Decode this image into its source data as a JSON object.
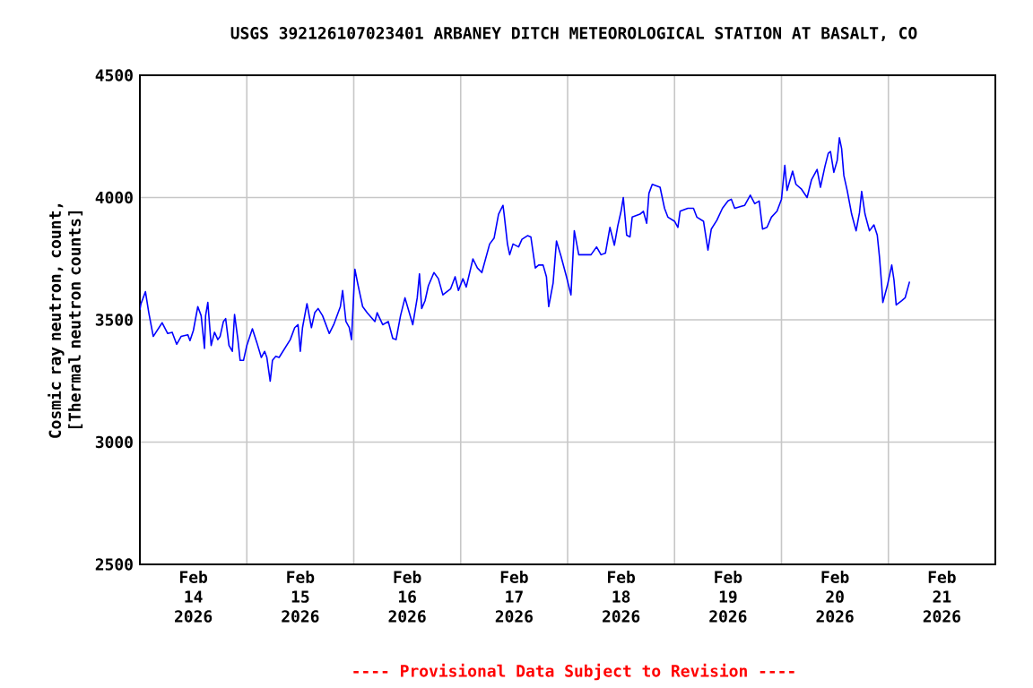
{
  "chart_data": {
    "type": "line",
    "title": "USGS 392126107023401 ARBANEY DITCH METEOROLOGICAL STATION AT BASALT, CO",
    "ylabel": "Cosmic ray neutron, count, [Thermal neutron counts]",
    "annotations": [
      "---- Provisional Data Subject to Revision ----"
    ],
    "xlim": [
      "2026-02-14",
      "2026-02-22"
    ],
    "xticks": [
      {
        "value": "2026-02-14T12:00",
        "label": "Feb 14 2026"
      },
      {
        "value": "2026-02-15T12:00",
        "label": "Feb 15 2026"
      },
      {
        "value": "2026-02-16T12:00",
        "label": "Feb 16 2026"
      },
      {
        "value": "2026-02-17T12:00",
        "label": "Feb 17 2026"
      },
      {
        "value": "2026-02-18T12:00",
        "label": "Feb 18 2026"
      },
      {
        "value": "2026-02-19T12:00",
        "label": "Feb 19 2026"
      },
      {
        "value": "2026-02-20T12:00",
        "label": "Feb 20 2026"
      },
      {
        "value": "2026-02-21T12:00",
        "label": "Feb 21 2026"
      },
      {
        "value": "2026-02-15",
        "label": null
      },
      {
        "value": "2026-02-16",
        "label": null
      },
      {
        "value": "2026-02-17",
        "label": null
      },
      {
        "value": "2026-02-18",
        "label": null
      },
      {
        "value": "2026-02-19",
        "label": null
      },
      {
        "value": "2026-02-20",
        "label": null
      },
      {
        "value": "2026-02-21",
        "label": null
      }
    ],
    "ylim": [
      2500,
      4500
    ],
    "yticks": [
      2500,
      3000,
      3500,
      4000,
      4500
    ],
    "grid": true,
    "series": [
      {
        "color": "#0000ff",
        "x": [
          "2026-02-14T00:00",
          "2026-02-14T00:15",
          "2026-02-14T01:15",
          "2026-02-14T02:00",
          "2026-02-14T03:00",
          "2026-02-14T05:00",
          "2026-02-14T06:15",
          "2026-02-14T07:15",
          "2026-02-14T08:15",
          "2026-02-14T09:15",
          "2026-02-14T10:45",
          "2026-02-14T11:15",
          "2026-02-14T12:00",
          "2026-02-14T13:00",
          "2026-02-14T13:45",
          "2026-02-14T14:30",
          "2026-02-14T14:45",
          "2026-02-14T15:15",
          "2026-02-14T16:00",
          "2026-02-14T16:45",
          "2026-02-14T17:30",
          "2026-02-14T18:00",
          "2026-02-14T18:45",
          "2026-02-14T19:15",
          "2026-02-14T20:00",
          "2026-02-14T20:45",
          "2026-02-14T21:15",
          "2026-02-14T22:00",
          "2026-02-14T22:30",
          "2026-02-14T23:15",
          "2026-02-15T00:00",
          "2026-02-15T01:15",
          "2026-02-15T02:15",
          "2026-02-15T03:15",
          "2026-02-15T04:00",
          "2026-02-15T04:30",
          "2026-02-15T05:15",
          "2026-02-15T05:45",
          "2026-02-15T06:30",
          "2026-02-15T07:15",
          "2026-02-15T09:45",
          "2026-02-15T10:45",
          "2026-02-15T11:30",
          "2026-02-15T12:00",
          "2026-02-15T12:30",
          "2026-02-15T13:30",
          "2026-02-15T14:30",
          "2026-02-15T15:15",
          "2026-02-15T16:00",
          "2026-02-15T17:00",
          "2026-02-15T18:30",
          "2026-02-15T19:30",
          "2026-02-15T21:00",
          "2026-02-15T21:30",
          "2026-02-15T22:15",
          "2026-02-15T23:00",
          "2026-02-15T23:30",
          "2026-02-16T00:15",
          "2026-02-16T01:00",
          "2026-02-16T02:00",
          "2026-02-16T03:00",
          "2026-02-16T04:45",
          "2026-02-16T05:15",
          "2026-02-16T06:30",
          "2026-02-16T07:45",
          "2026-02-16T08:45",
          "2026-02-16T09:30",
          "2026-02-16T10:30",
          "2026-02-16T11:30",
          "2026-02-16T13:15",
          "2026-02-16T14:15",
          "2026-02-16T14:45",
          "2026-02-16T15:15",
          "2026-02-16T16:00",
          "2026-02-16T16:45",
          "2026-02-16T18:00",
          "2026-02-16T19:00",
          "2026-02-16T20:00",
          "2026-02-16T21:45",
          "2026-02-16T22:45",
          "2026-02-16T23:30",
          "2026-02-17T00:30",
          "2026-02-17T01:15",
          "2026-02-17T02:45",
          "2026-02-17T03:45",
          "2026-02-17T04:45",
          "2026-02-17T06:30",
          "2026-02-17T07:30",
          "2026-02-17T08:30",
          "2026-02-17T09:30",
          "2026-02-17T09:45",
          "2026-02-17T10:30",
          "2026-02-17T11:00",
          "2026-02-17T11:45",
          "2026-02-17T13:00",
          "2026-02-17T13:45",
          "2026-02-17T15:00",
          "2026-02-17T15:45",
          "2026-02-17T16:45",
          "2026-02-17T17:30",
          "2026-02-17T18:30",
          "2026-02-17T19:15",
          "2026-02-17T19:45",
          "2026-02-17T20:45",
          "2026-02-17T21:30",
          "2026-02-17T22:30",
          "2026-02-17T23:45",
          "2026-02-18T00:45",
          "2026-02-18T01:30",
          "2026-02-18T02:30",
          "2026-02-18T05:15",
          "2026-02-18T06:30",
          "2026-02-18T07:30",
          "2026-02-18T08:30",
          "2026-02-18T09:30",
          "2026-02-18T10:30",
          "2026-02-18T11:15",
          "2026-02-18T12:00",
          "2026-02-18T12:30",
          "2026-02-18T13:15",
          "2026-02-18T14:00",
          "2026-02-18T14:30",
          "2026-02-18T16:15",
          "2026-02-18T17:00",
          "2026-02-18T17:45",
          "2026-02-18T18:15",
          "2026-02-18T19:00",
          "2026-02-18T20:45",
          "2026-02-18T21:45",
          "2026-02-18T22:30",
          "2026-02-19T00:00",
          "2026-02-19T00:45",
          "2026-02-19T01:15",
          "2026-02-19T03:00",
          "2026-02-19T04:15",
          "2026-02-19T05:00",
          "2026-02-19T06:30",
          "2026-02-19T07:30",
          "2026-02-19T08:15",
          "2026-02-19T09:30",
          "2026-02-19T10:45",
          "2026-02-19T12:00",
          "2026-02-19T12:45",
          "2026-02-19T13:30",
          "2026-02-19T15:00",
          "2026-02-19T15:45",
          "2026-02-19T17:00",
          "2026-02-19T18:00",
          "2026-02-19T19:00",
          "2026-02-19T19:45",
          "2026-02-19T20:45",
          "2026-02-19T21:45",
          "2026-02-19T23:00",
          "2026-02-20T00:00",
          "2026-02-20T00:45",
          "2026-02-20T01:15",
          "2026-02-20T02:30",
          "2026-02-20T03:15",
          "2026-02-20T04:30",
          "2026-02-20T05:45",
          "2026-02-20T06:45",
          "2026-02-20T08:00",
          "2026-02-20T08:45",
          "2026-02-20T09:45",
          "2026-02-20T10:30",
          "2026-02-20T11:00",
          "2026-02-20T11:45",
          "2026-02-20T12:30",
          "2026-02-20T13:00",
          "2026-02-20T13:30",
          "2026-02-20T14:00",
          "2026-02-20T14:45",
          "2026-02-20T15:45",
          "2026-02-20T16:45",
          "2026-02-20T17:30",
          "2026-02-20T18:00",
          "2026-02-20T18:45",
          "2026-02-20T19:45",
          "2026-02-20T20:45",
          "2026-02-20T21:30",
          "2026-02-20T22:00",
          "2026-02-20T22:30",
          "2026-02-20T22:45",
          "2026-02-20T23:45",
          "2026-02-21T00:45",
          "2026-02-21T01:15",
          "2026-02-21T01:45",
          "2026-02-21T03:00",
          "2026-02-21T03:45",
          "2026-02-21T04:45"
        ],
        "values": [
          3541,
          3566,
          3615,
          3529,
          3432,
          3488,
          3444,
          3449,
          3400,
          3432,
          3439,
          3415,
          3456,
          3554,
          3517,
          3383,
          3517,
          3571,
          3395,
          3449,
          3419,
          3432,
          3493,
          3505,
          3395,
          3371,
          3522,
          3419,
          3334,
          3334,
          3395,
          3463,
          3407,
          3346,
          3371,
          3346,
          3249,
          3334,
          3351,
          3346,
          3419,
          3468,
          3480,
          3371,
          3468,
          3566,
          3468,
          3529,
          3546,
          3517,
          3444,
          3480,
          3554,
          3620,
          3493,
          3468,
          3419,
          3707,
          3639,
          3554,
          3529,
          3493,
          3529,
          3480,
          3493,
          3424,
          3419,
          3517,
          3590,
          3480,
          3590,
          3688,
          3546,
          3578,
          3639,
          3693,
          3668,
          3602,
          3627,
          3676,
          3620,
          3668,
          3634,
          3749,
          3712,
          3693,
          3810,
          3834,
          3932,
          3968,
          3932,
          3810,
          3766,
          3810,
          3798,
          3829,
          3844,
          3839,
          3712,
          3724,
          3724,
          3676,
          3554,
          3651,
          3822,
          3761,
          3676,
          3602,
          3864,
          3766,
          3766,
          3798,
          3766,
          3773,
          3878,
          3805,
          3883,
          3944,
          4000,
          3846,
          3839,
          3920,
          3932,
          3944,
          3895,
          4017,
          4054,
          4042,
          3956,
          3920,
          3903,
          3878,
          3944,
          3956,
          3956,
          3920,
          3903,
          3785,
          3871,
          3907,
          3956,
          3986,
          3993,
          3956,
          3964,
          3968,
          4010,
          3975,
          3986,
          3871,
          3878,
          3920,
          3944,
          3993,
          4132,
          4029,
          4108,
          4054,
          4034,
          4000,
          4073,
          4115,
          4042,
          4127,
          4181,
          4188,
          4103,
          4151,
          4244,
          4200,
          4090,
          4029,
          3932,
          3864,
          3937,
          4025,
          3932,
          3864,
          3888,
          3846,
          3756,
          3639,
          3571,
          3639,
          3724,
          3663,
          3561,
          3578,
          3590,
          3656
        ]
      }
    ]
  }
}
